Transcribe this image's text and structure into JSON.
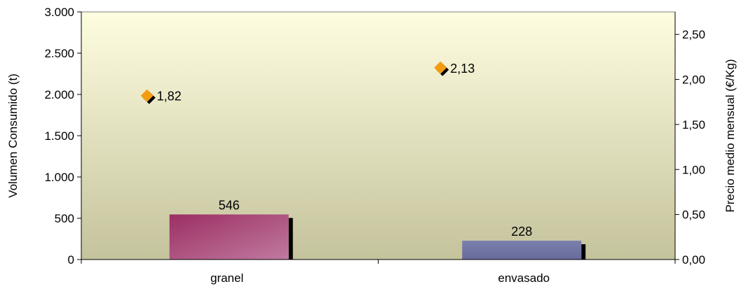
{
  "chart_data": {
    "type": "bar",
    "categories": [
      "granel",
      "envasado"
    ],
    "series": [
      {
        "axis": "left",
        "chart_type": "bar",
        "values": [
          546,
          228
        ],
        "labels": [
          "546",
          "228"
        ],
        "colors": [
          "#b8668f",
          "#7276a6"
        ]
      },
      {
        "axis": "right",
        "chart_type": "scatter",
        "values": [
          1.82,
          2.13
        ],
        "labels": [
          "1,82",
          "2,13"
        ],
        "color": "#f39c12"
      }
    ],
    "ylabel": "Volumen Consumido (t)",
    "y2label": "Precio medio mensual (€/Kg)",
    "ylim": [
      0,
      3000
    ],
    "y2lim": [
      0,
      2.75
    ],
    "yticks": [
      0,
      500,
      1000,
      1500,
      2000,
      2500,
      3000
    ],
    "ytick_labels": [
      "0",
      "500",
      "1.000",
      "1.500",
      "2.000",
      "2.500",
      "3.000"
    ],
    "y2ticks": [
      0,
      0.5,
      1.0,
      1.5,
      2.0,
      2.5
    ],
    "y2tick_labels": [
      "0,00",
      "0,50",
      "1,00",
      "1,50",
      "2,00",
      "2,50"
    ],
    "plot_background": [
      "#fffde0",
      "#c4c39c"
    ]
  }
}
